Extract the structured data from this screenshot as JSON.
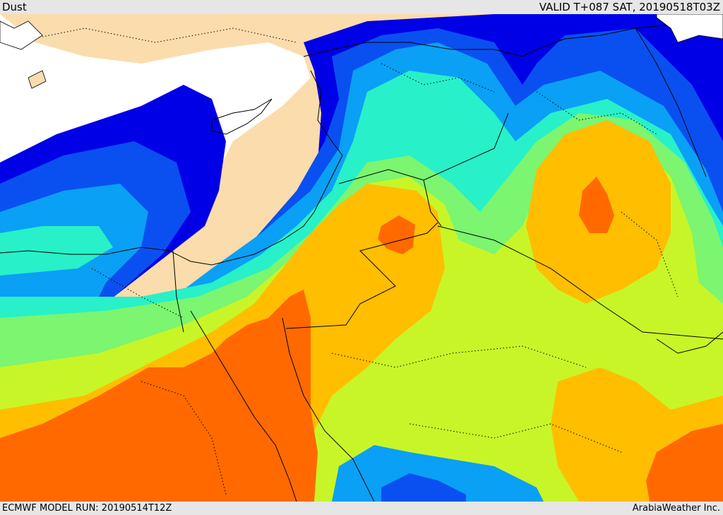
{
  "header": {
    "title": "Dust",
    "valid": "VALID T+087 SAT, 20190518T03Z"
  },
  "footer": {
    "model_run": "ECMWF MODEL RUN: 20190514T12Z",
    "credit": "ArabiaWeather Inc."
  },
  "colors": {
    "land": "#fbdcac",
    "sea_clear": "#ffffff",
    "level_1": "#0000e6",
    "level_2": "#0a50f0",
    "level_3": "#0aa0f5",
    "level_4": "#28f0c8",
    "level_5": "#7cf570",
    "level_6": "#c8f528",
    "level_7": "#ffbe00",
    "level_8": "#ff6900"
  }
}
